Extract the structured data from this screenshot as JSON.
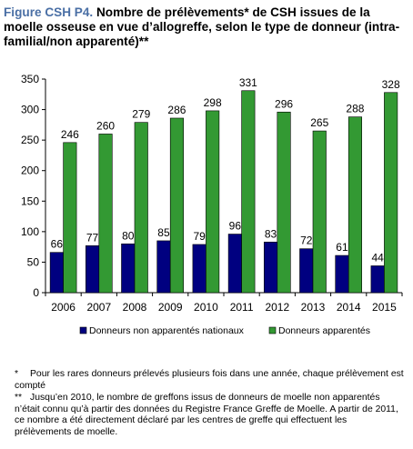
{
  "title": {
    "figure_label": "Figure CSH P4.",
    "text": "Nombre de prélèvements* de CSH issues de la moelle osseuse en vue d’allogreffe, selon le type de donneur (intra-familial/non apparenté)**"
  },
  "chart_data": {
    "type": "bar",
    "categories": [
      "2006",
      "2007",
      "2008",
      "2009",
      "2010",
      "2011",
      "2012",
      "2013",
      "2014",
      "2015"
    ],
    "series": [
      {
        "name": "Donneurs non apparentés nationaux",
        "color": "#000080",
        "values": [
          66,
          77,
          80,
          85,
          79,
          96,
          83,
          72,
          61,
          44
        ]
      },
      {
        "name": "Donneurs apparentés",
        "color": "#339933",
        "values": [
          246,
          260,
          279,
          286,
          298,
          331,
          296,
          265,
          288,
          328
        ]
      }
    ],
    "ylim": [
      0,
      350
    ],
    "yticks": [
      0,
      50,
      100,
      150,
      200,
      250,
      300,
      350
    ],
    "grid": false,
    "legend_position": "bottom"
  },
  "notes": {
    "note1_mark": "*",
    "note1_text": "Pour les rares donneurs prélevés plusieurs fois dans une année, chaque prélèvement est compté",
    "note2_mark": "**",
    "note2_text": "Jusqu’en 2010, le nombre de greffons issus de donneurs de moelle non apparentés n’était connu qu’à partir des données du Registre France Greffe de Moelle. A partir de 2011, ce nombre a été directement déclaré par les centres de greffe qui effectuent les prélèvements de moelle."
  }
}
